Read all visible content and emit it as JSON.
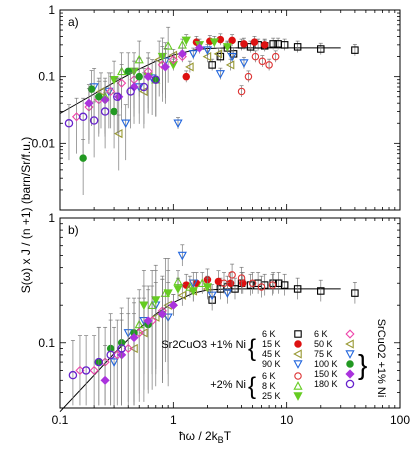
{
  "chart_data": [
    {
      "type": "scatter",
      "panel_label": "a)",
      "xscale": "log",
      "yscale": "log",
      "xlim": [
        0.1,
        100
      ],
      "ylim": [
        0.001,
        1
      ],
      "ytick_labels": [
        "0.01",
        "0.1",
        "1"
      ],
      "grid": false,
      "fit_curve": {
        "type": "line",
        "x": [
          0.1,
          0.2,
          0.3,
          0.5,
          0.7,
          1.0,
          1.5,
          2.0,
          3.0,
          5.0,
          10,
          20,
          30
        ],
        "y": [
          0.028,
          0.055,
          0.082,
          0.13,
          0.17,
          0.21,
          0.25,
          0.265,
          0.27,
          0.27,
          0.27,
          0.27,
          0.27
        ]
      },
      "series": [
        {
          "x": [
            2.2,
            2.6,
            3.0,
            3.4,
            4.0,
            4.8,
            5.6,
            6.4,
            7.6,
            8.4,
            9.6,
            12.5,
            20.0,
            40.0
          ],
          "y": [
            0.15,
            0.2,
            0.27,
            0.22,
            0.3,
            0.28,
            0.3,
            0.29,
            0.31,
            0.31,
            0.3,
            0.28,
            0.26,
            0.25
          ]
        },
        {
          "x": [
            1.3,
            1.6,
            2.1,
            2.6,
            3.3,
            4.2,
            5.2,
            6.4
          ],
          "y": [
            0.1,
            0.33,
            0.34,
            0.36,
            0.35,
            0.31,
            0.33,
            0.3
          ]
        },
        {
          "x": [
            0.23,
            0.33,
            0.55,
            0.75,
            1.0,
            1.4,
            2.0,
            2.5,
            3.2
          ],
          "y": [
            0.06,
            0.014,
            0.06,
            0.18,
            0.21,
            0.14,
            0.2,
            0.22,
            0.15
          ]
        },
        {
          "x": [
            0.2,
            0.27,
            0.38,
            0.5,
            0.65,
            0.85,
            1.1,
            1.5,
            2.0,
            2.6,
            3.3,
            4.2
          ],
          "y": [
            0.07,
            0.06,
            0.02,
            0.07,
            0.095,
            0.17,
            0.02,
            0.22,
            0.25,
            0.11,
            0.2,
            0.16
          ]
        },
        {
          "x": [
            4.0,
            4.6,
            5.3,
            6.1,
            7.0,
            8.0
          ],
          "y": [
            0.06,
            0.1,
            0.2,
            0.17,
            0.15,
            0.2
          ]
        },
        {
          "x": [
            0.25,
            0.35,
            0.5,
            0.7,
            0.9,
            1.2
          ],
          "y": [
            0.05,
            0.12,
            0.18,
            0.09,
            0.29,
            0.3
          ]
        },
        {
          "x": [
            0.3,
            0.45,
            0.6,
            0.8,
            1.0,
            1.3,
            1.7,
            2.3,
            3.0
          ],
          "y": [
            0.09,
            0.12,
            0.1,
            0.2,
            0.15,
            0.35,
            0.3,
            0.33,
            0.28
          ]
        },
        {
          "x": [
            0.14,
            0.18,
            0.22,
            0.28,
            0.35,
            0.45,
            0.6,
            0.8,
            1.0,
            1.2
          ],
          "y": [
            0.025,
            0.035,
            0.045,
            0.06,
            0.08,
            0.09,
            0.12,
            0.15,
            0.18,
            0.2
          ]
        },
        {
          "x": [
            0.16,
            0.19,
            0.22,
            0.3,
            0.4,
            0.5,
            0.7
          ],
          "y": [
            0.006,
            0.065,
            0.05,
            0.03,
            0.12,
            0.1,
            0.09
          ]
        },
        {
          "x": [
            0.18,
            0.25,
            0.33,
            0.45,
            0.6,
            0.85,
            1.2,
            1.7
          ],
          "y": [
            0.04,
            0.045,
            0.05,
            0.07,
            0.1,
            0.14,
            0.22,
            0.27
          ]
        },
        {
          "x": [
            0.12,
            0.16,
            0.2,
            0.25,
            0.32,
            0.42,
            0.55,
            0.7
          ],
          "y": [
            0.02,
            0.025,
            0.022,
            0.03,
            0.05,
            0.06,
            0.07,
            0.09
          ]
        }
      ]
    },
    {
      "type": "scatter",
      "panel_label": "b)",
      "xscale": "log",
      "yscale": "log",
      "xlim": [
        0.1,
        100
      ],
      "ylim": [
        0.03,
        1
      ],
      "xtick_labels": [
        "0.1",
        "1",
        "10",
        "100"
      ],
      "ytick_labels": [
        "0.1",
        "1"
      ],
      "grid": false,
      "legend_left": {
        "groups": [
          {
            "label": "Sr2CuO3 +1% Ni",
            "entries": [
              "6 K",
              "15 K",
              "45 K",
              "90 K"
            ]
          },
          {
            "label": "+2% Ni",
            "entries": [
              "6 K",
              "8 K",
              "25 K"
            ]
          }
        ]
      },
      "legend_right": {
        "label": "SrCuO2 +1% Ni",
        "entries": [
          "6 K",
          "50 K",
          "75 K",
          "100 K",
          "150 K",
          "180 K"
        ]
      },
      "fit_curve": {
        "type": "line",
        "x": [
          0.1,
          0.2,
          0.3,
          0.5,
          0.7,
          1.0,
          1.5,
          2.0,
          3.0,
          5.0,
          10,
          20,
          30
        ],
        "y": [
          0.028,
          0.055,
          0.082,
          0.13,
          0.17,
          0.21,
          0.25,
          0.265,
          0.27,
          0.27,
          0.27,
          0.27,
          0.27
        ]
      },
      "series": [
        {
          "x": [
            2.2,
            2.6,
            3.0,
            3.5,
            4.0,
            4.8,
            5.6,
            6.4,
            7.6,
            8.5,
            9.6,
            12.5,
            20.0,
            40.0
          ],
          "y": [
            0.22,
            0.27,
            0.28,
            0.27,
            0.3,
            0.29,
            0.3,
            0.29,
            0.3,
            0.3,
            0.29,
            0.27,
            0.26,
            0.25
          ]
        },
        {
          "x": [
            1.3,
            1.6,
            2.0,
            2.5,
            3.2,
            4.1
          ],
          "y": [
            0.29,
            0.3,
            0.32,
            0.31,
            0.3,
            0.3
          ]
        },
        {
          "x": [
            0.45,
            0.55,
            0.7,
            0.9,
            1.2,
            1.5,
            2.0
          ],
          "y": [
            0.09,
            0.12,
            0.16,
            0.2,
            0.24,
            0.26,
            0.27
          ]
        },
        {
          "x": [
            0.3,
            0.4,
            0.55,
            0.7,
            0.9,
            1.2,
            1.5,
            2.2,
            3.0
          ],
          "y": [
            0.07,
            0.12,
            0.15,
            0.2,
            0.16,
            0.5,
            0.3,
            0.24,
            0.25
          ]
        },
        {
          "x": [
            2.8,
            3.3,
            4.0,
            5.0,
            6.0,
            7.5
          ],
          "y": [
            0.3,
            0.35,
            0.33,
            0.3,
            0.28,
            0.29
          ]
        },
        {
          "x": [
            0.5,
            0.65,
            0.85,
            1.1,
            1.4,
            1.8
          ],
          "y": [
            0.14,
            0.2,
            0.25,
            0.31,
            0.28,
            0.3
          ]
        },
        {
          "x": [
            0.55,
            0.7,
            0.9,
            1.1,
            1.5,
            2.0
          ],
          "y": [
            0.2,
            0.22,
            0.25,
            0.27,
            0.26,
            0.28
          ]
        },
        {
          "x": [
            0.15,
            0.2,
            0.25,
            0.32,
            0.4,
            0.5,
            0.65,
            0.8,
            1.0
          ],
          "y": [
            0.06,
            0.06,
            0.07,
            0.08,
            0.09,
            0.12,
            0.15,
            0.18,
            0.2
          ]
        },
        {
          "x": [
            0.22,
            0.28,
            0.35,
            0.45,
            0.6,
            0.8
          ],
          "y": [
            0.07,
            0.09,
            0.1,
            0.12,
            0.14,
            0.17
          ]
        },
        {
          "x": [
            0.25,
            0.35,
            0.45,
            0.6,
            0.8,
            1.0
          ],
          "y": [
            0.05,
            0.08,
            0.11,
            0.15,
            0.17,
            0.2
          ]
        },
        {
          "x": [
            0.13,
            0.17,
            0.22,
            0.28,
            0.35
          ],
          "y": [
            0.055,
            0.06,
            0.07,
            0.08,
            0.09
          ]
        }
      ]
    }
  ],
  "axes": {
    "xlabel": "ħω / 2k",
    "xlabel_sub": "B",
    "xlabel_tail": "T",
    "ylabel": "S(ω) x J / (n +1) (barn/Sr/f.u.)"
  },
  "colors": {
    "s6K": "#000000",
    "s15K": "#dd1111",
    "s45K": "#999933",
    "s90K": "#2266dd",
    "t6K": "#dd3333",
    "t8K": "#66cc22",
    "t25K": "#33aa55",
    "r6K": "#ee44aa",
    "r50K": "#999933",
    "r75K": "#3344cc",
    "r100K": "#229922",
    "r150K": "#aa33dd",
    "r180K": "#6622cc",
    "fit": "#000000"
  }
}
